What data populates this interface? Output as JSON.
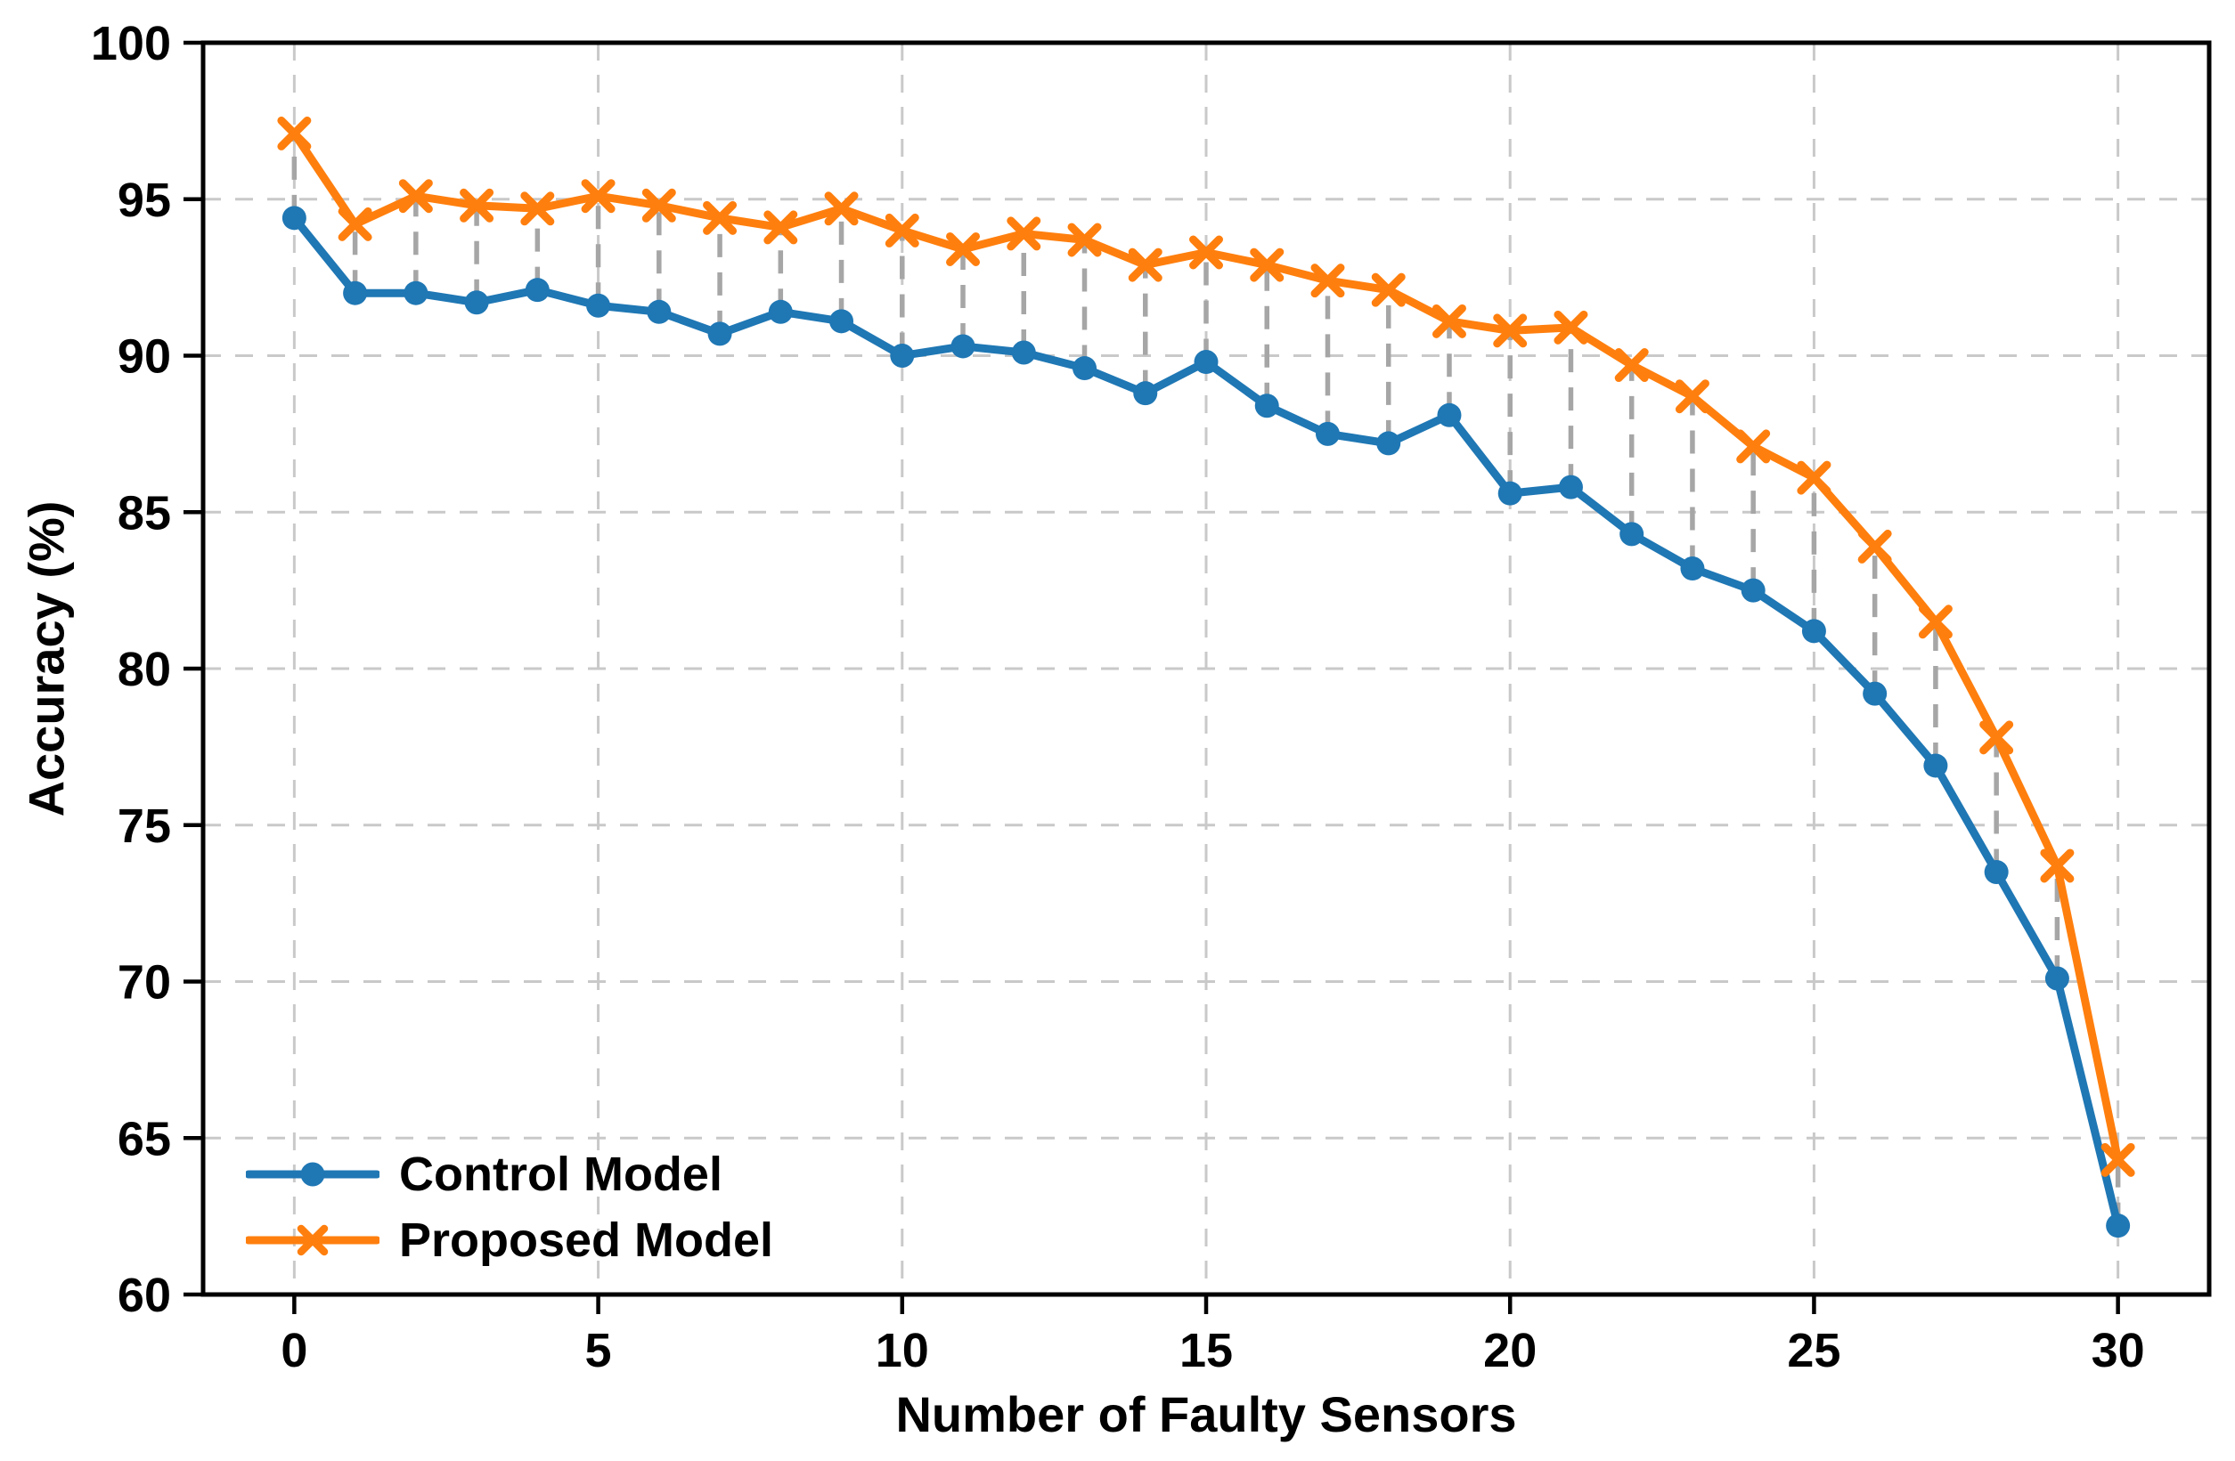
{
  "chart_data": {
    "type": "line",
    "title": "",
    "xlabel": "Number of Faulty Sensors",
    "ylabel": "Accuracy (%)",
    "xlim": [
      -1.5,
      31.5
    ],
    "ylim": [
      60,
      100
    ],
    "xticks": [
      0,
      5,
      10,
      15,
      20,
      25,
      30
    ],
    "yticks": [
      60,
      65,
      70,
      75,
      80,
      85,
      90,
      95,
      100
    ],
    "grid": "dashed-both-axes",
    "legend_position": "lower-left",
    "x": [
      0,
      1,
      2,
      3,
      4,
      5,
      6,
      7,
      8,
      9,
      10,
      11,
      12,
      13,
      14,
      15,
      16,
      17,
      18,
      19,
      20,
      21,
      22,
      23,
      24,
      25,
      26,
      27,
      28,
      29,
      30
    ],
    "series": [
      {
        "name": "Control Model",
        "color": "#1f77b4",
        "marker": "circle",
        "values": [
          94.4,
          92.0,
          92.0,
          91.7,
          92.1,
          91.6,
          91.4,
          90.7,
          91.4,
          91.1,
          90.0,
          90.3,
          90.1,
          89.6,
          88.8,
          89.8,
          88.4,
          87.5,
          87.2,
          88.1,
          85.6,
          85.8,
          84.3,
          83.2,
          82.5,
          81.2,
          79.2,
          76.9,
          73.5,
          70.1,
          62.2
        ]
      },
      {
        "name": "Proposed Model",
        "color": "#ff7f0e",
        "marker": "x",
        "values": [
          97.1,
          94.2,
          95.1,
          94.8,
          94.7,
          95.1,
          94.8,
          94.4,
          94.1,
          94.7,
          94.0,
          93.4,
          93.9,
          93.7,
          92.9,
          93.3,
          92.9,
          92.4,
          92.1,
          91.1,
          90.8,
          90.9,
          89.7,
          88.7,
          87.1,
          86.1,
          83.9,
          81.5,
          77.8,
          73.7,
          64.3
        ]
      }
    ],
    "connectors": {
      "description": "vertical dashed gray segments linking the two series at every x",
      "style": "dashed",
      "color": "#a6a6a6"
    }
  }
}
